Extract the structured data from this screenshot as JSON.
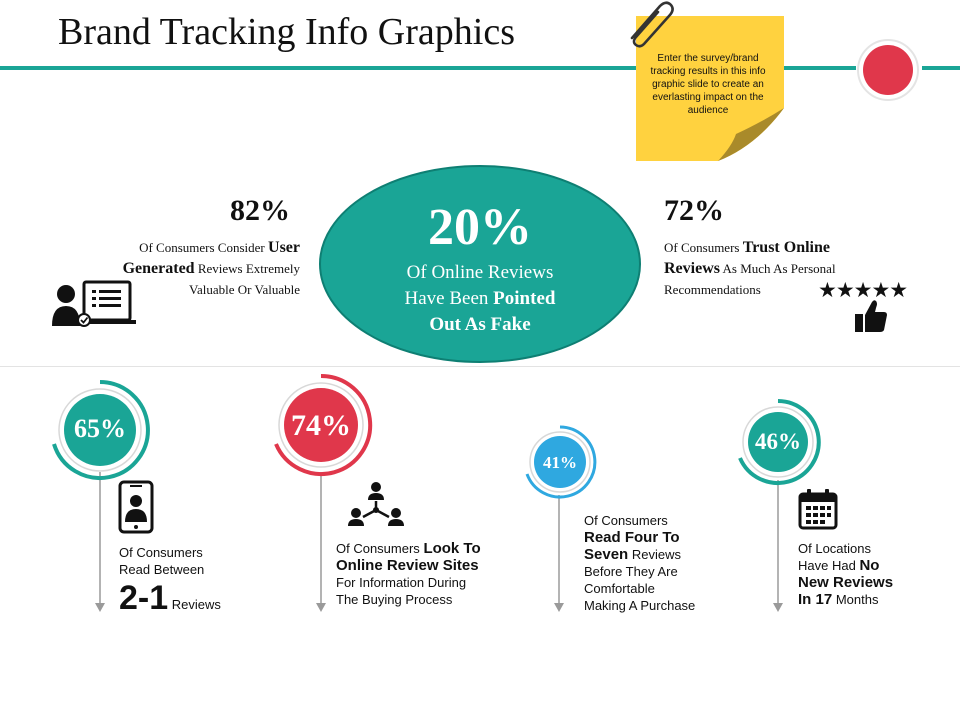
{
  "title": "Brand Tracking Info Graphics",
  "sticky_note": "Enter the survey/brand tracking results in this info graphic slide to create an everlasting impact on the audience",
  "colors": {
    "teal": "#1aa596",
    "red": "#e0374b",
    "blue": "#2fa8e0",
    "note": "#ffd23f",
    "dark": "#111111"
  },
  "center": {
    "percent": "20%",
    "line1": "Of Online Reviews",
    "line2_pre": "Have Been",
    "line2_bold": "Pointed",
    "line3_bold": "Out As Fake"
  },
  "stat_left": {
    "percent": "82%",
    "pre": "Of Consumers Consider",
    "bold1": "User",
    "bold2": "Generated",
    "post": "Reviews Extremely",
    "line3": "Valuable Or Valuable",
    "icon": "user-laptop-icon"
  },
  "stat_right": {
    "percent": "72%",
    "pre": "Of Consumers",
    "bold1": "Trust Online",
    "bold2": "Reviews",
    "post": "As Much As Personal",
    "line3": "Recommendations",
    "icon": "thumbs-up-stars-icon",
    "stars": "★★★★★"
  },
  "bottom": [
    {
      "percent": "65%",
      "l1": "Of Consumers",
      "l2": "Read Between",
      "big": "2-1",
      "tail": "Reviews",
      "icon": "smartphone-user-icon"
    },
    {
      "percent": "74%",
      "l1_pre": "Of Consumers",
      "l1_bold": "Look To",
      "l2_bold": "Online Review Sites",
      "l3": "For Information During",
      "l4": "The Buying Process",
      "icon": "network-people-icon"
    },
    {
      "percent": "41%",
      "l1": "Of Consumers",
      "l2_bold": "Read Four To",
      "l3_bold": "Seven",
      "l3_post": "Reviews",
      "l4": "Before They Are",
      "l5": "Comfortable",
      "l6": "Making A Purchase"
    },
    {
      "percent": "46%",
      "l1": "Of Locations",
      "l2_pre": "Have Had",
      "l2_bold": "No",
      "l3_bold": "New Reviews",
      "l4_bold": "In 17",
      "l4_post": "Months",
      "icon": "calendar-icon"
    }
  ]
}
